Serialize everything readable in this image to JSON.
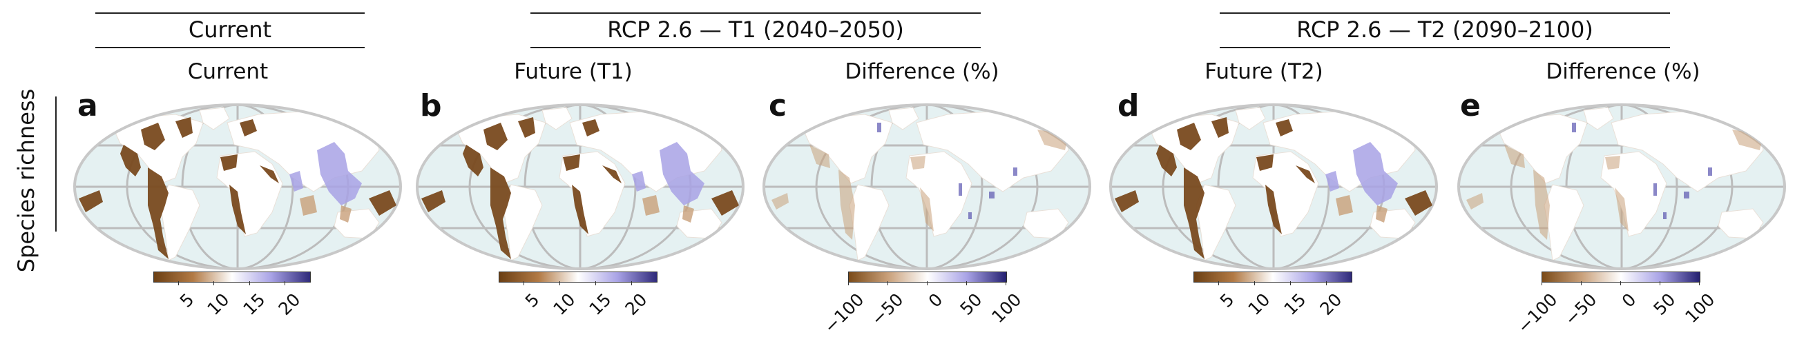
{
  "header": {
    "group_current": "Current",
    "group_t1": "RCP 2.6 — T1 (2040–2050)",
    "group_t2": "RCP 2.6 — T2 (2090–2100)"
  },
  "panels": [
    {
      "letter": "a",
      "title": "Current"
    },
    {
      "letter": "b",
      "title": "Future (T1)"
    },
    {
      "letter": "c",
      "title": "Difference (%)"
    },
    {
      "letter": "d",
      "title": "Future (T2)"
    },
    {
      "letter": "e",
      "title": "Difference (%)"
    }
  ],
  "row_label": "Species richness",
  "colorbars": {
    "richness": {
      "ticks": [
        "5",
        "10",
        "15",
        "20"
      ],
      "colors": [
        "#6b3f14",
        "#b27a45",
        "#ffffff",
        "#a9a3e6",
        "#2f2a7a"
      ]
    },
    "difference": {
      "ticks": [
        "−100",
        "−50",
        "0",
        "50",
        "100"
      ],
      "colors": [
        "#7a4a18",
        "#c9a07a",
        "#ffffff",
        "#a9a3e6",
        "#242070"
      ]
    }
  },
  "colors": {
    "ocean": "#e5f1f2",
    "land": "#ffffff",
    "grid": "#bcbcbc",
    "richness_land": "#7a4a1f"
  }
}
